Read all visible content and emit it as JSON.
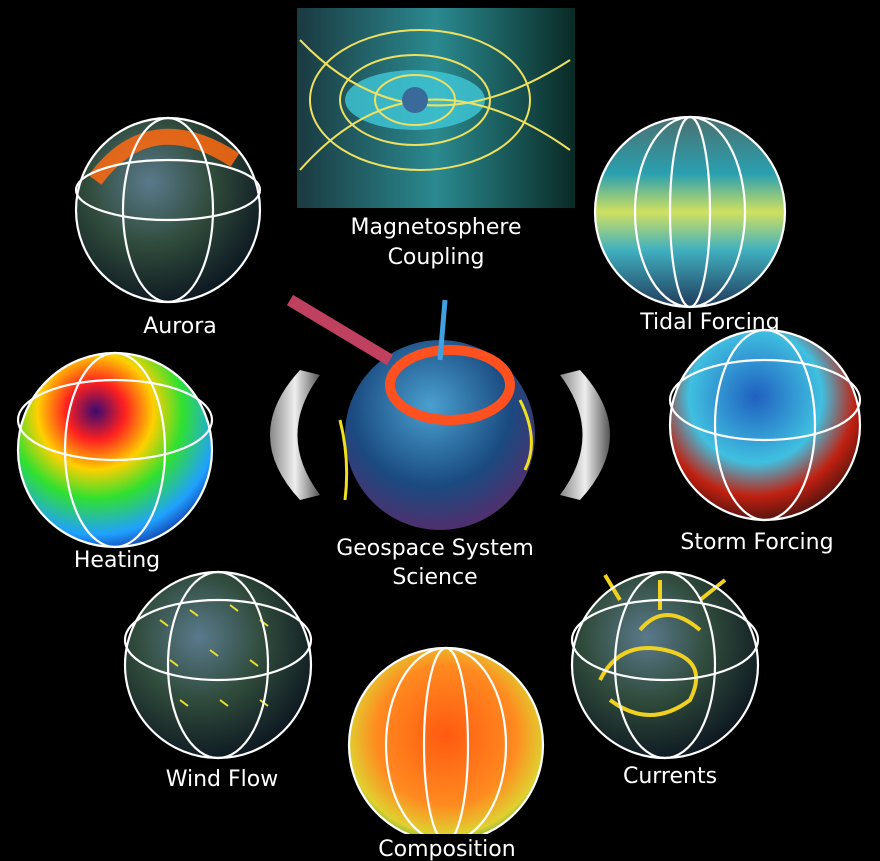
{
  "center": {
    "lines": [
      "Geospace System",
      "Science"
    ]
  },
  "nodes": [
    {
      "lines": [
        "Magnetosphere",
        "Coupling"
      ]
    },
    {
      "lines": [
        "Aurora"
      ]
    },
    {
      "lines": [
        "Tidal Forcing"
      ]
    },
    {
      "lines": [
        "Heating"
      ]
    },
    {
      "lines": [
        "Storm Forcing"
      ]
    },
    {
      "lines": [
        "Wind Flow"
      ]
    },
    {
      "lines": [
        "Composition"
      ]
    },
    {
      "lines": [
        "Currents"
      ]
    }
  ]
}
